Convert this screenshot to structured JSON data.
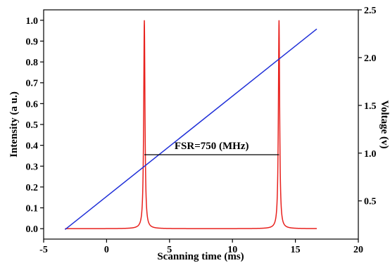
{
  "chart_data": {
    "type": "line",
    "title": "",
    "xlabel": "Scanning time (ms)",
    "ylabel_left": "Intensity (a u.)",
    "ylabel_right": "Voltage (v)",
    "xlim": [
      -5,
      20
    ],
    "ylim_left": [
      -0.05,
      1.05
    ],
    "ylim_right": [
      0.1,
      2.5
    ],
    "x_ticks": [
      -5,
      0,
      5,
      10,
      15,
      20
    ],
    "y_left_ticks": [
      0.0,
      0.1,
      0.2,
      0.3,
      0.4,
      0.5,
      0.6,
      0.7,
      0.8,
      0.9,
      1.0
    ],
    "y_left_tick_labels": [
      "0.0",
      "0.1",
      "0.2",
      "0.3",
      "0.4",
      "0.5",
      "0.6",
      "0.7",
      "0.8",
      "0.9",
      "1.0"
    ],
    "y_right_ticks": [
      0.5,
      1.0,
      1.5,
      2.0,
      2.5
    ],
    "y_right_tick_labels": [
      "0.5",
      "1.0",
      "1.5",
      "2.0",
      "2.5"
    ],
    "grid": false,
    "legend": "none",
    "series": [
      {
        "axis": "left",
        "color": "#e8211d",
        "baseline": 0.0,
        "x_range": [
          -3.3,
          16.7
        ],
        "peaks": [
          {
            "x": 3.0,
            "y": 1.0
          },
          {
            "x": 13.7,
            "y": 1.0
          }
        ]
      },
      {
        "axis": "right",
        "color": "#1f2fd8",
        "x": [
          -3.3,
          16.7
        ],
        "y": [
          0.2,
          2.3
        ]
      }
    ],
    "annotations": [
      {
        "text": "FSR=750 (MHz)",
        "type": "bracket",
        "x_start": 3.0,
        "x_end": 13.7,
        "y": 0.355
      }
    ]
  }
}
